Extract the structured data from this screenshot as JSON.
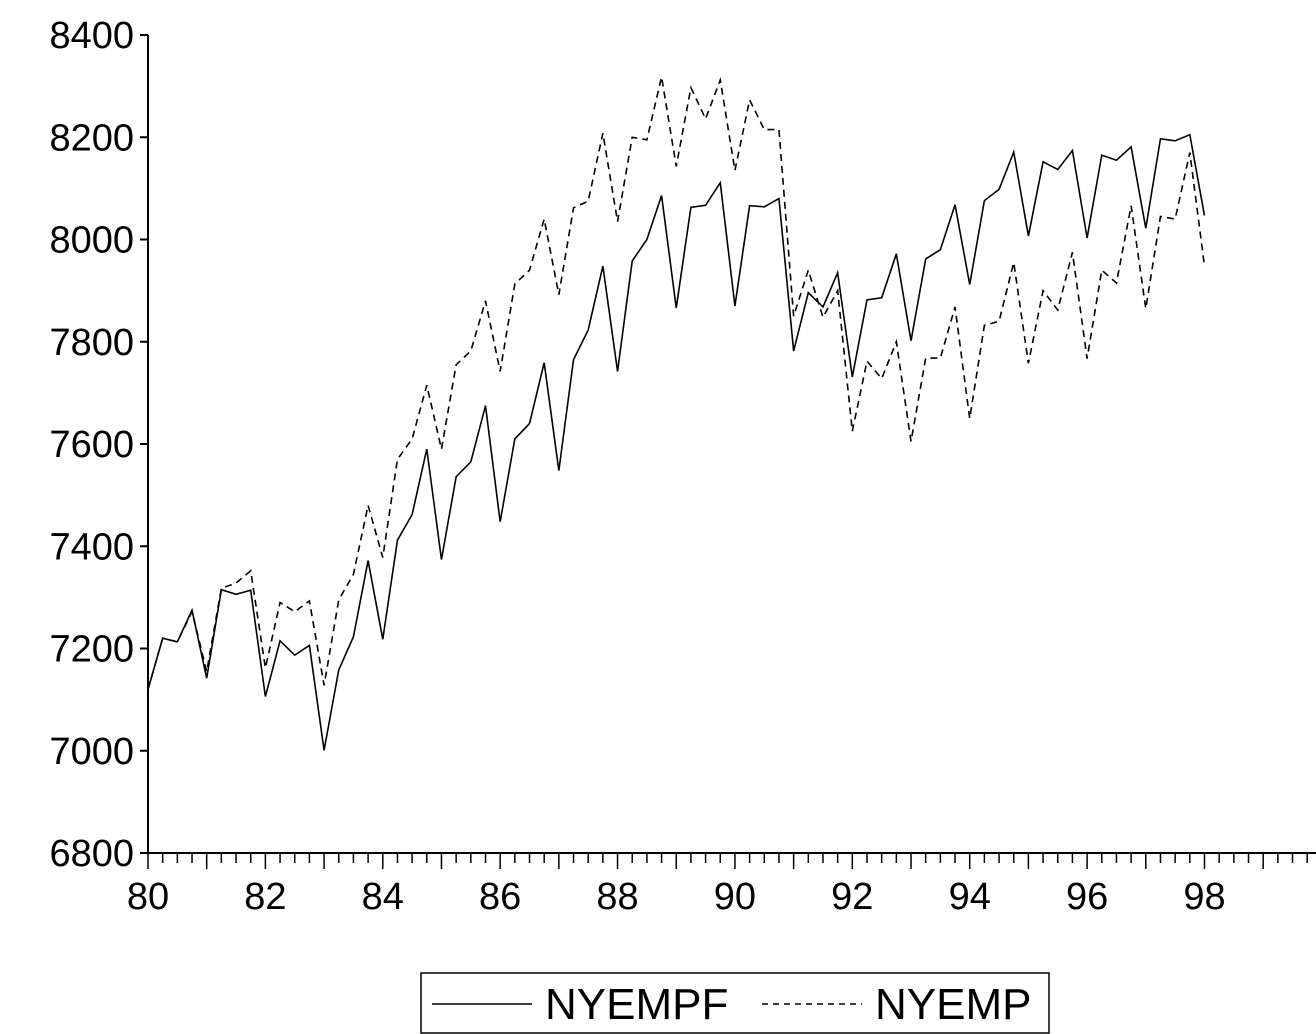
{
  "chart_data": {
    "type": "line",
    "title": "",
    "xlabel": "",
    "ylabel": "",
    "x_start": 1980.0,
    "x_step": 0.25,
    "xlim": [
      1980,
      1999.9
    ],
    "ylim": [
      6800,
      8400
    ],
    "y_ticks": [
      6800,
      7000,
      7200,
      7400,
      7600,
      7800,
      8000,
      8200,
      8400
    ],
    "x_ticks": [
      {
        "value": 1980,
        "label": "80"
      },
      {
        "value": 1982,
        "label": "82"
      },
      {
        "value": 1984,
        "label": "84"
      },
      {
        "value": 1986,
        "label": "86"
      },
      {
        "value": 1988,
        "label": "88"
      },
      {
        "value": 1990,
        "label": "90"
      },
      {
        "value": 1992,
        "label": "92"
      },
      {
        "value": 1994,
        "label": "94"
      },
      {
        "value": 1996,
        "label": "96"
      },
      {
        "value": 1998,
        "label": "98"
      }
    ],
    "grid": false,
    "legend": "bottom-center",
    "series": [
      {
        "name": "NYEMPF",
        "style": "solid",
        "color": "#000000",
        "values": [
          7120,
          7220,
          7213,
          7275,
          7142,
          7315,
          7306,
          7314,
          7106,
          7215,
          7187,
          7206,
          7001,
          7158,
          7223,
          7372,
          7218,
          7412,
          7462,
          7590,
          7374,
          7536,
          7565,
          7675,
          7448,
          7610,
          7640,
          7759,
          7548,
          7765,
          7823,
          7948,
          7742,
          7958,
          8000,
          8086,
          7866,
          8063,
          8067,
          8111,
          7870,
          8066,
          8064,
          8080,
          7782,
          7896,
          7868,
          7935,
          7731,
          7882,
          7886,
          7972,
          7802,
          7962,
          7980,
          8068,
          7912,
          8076,
          8098,
          8171,
          8007,
          8152,
          8137,
          8174,
          8003,
          8165,
          8155,
          8181,
          8022,
          8197,
          8193,
          8205,
          8047
        ]
      },
      {
        "name": "NYEMP",
        "style": "dashed",
        "color": "#000000",
        "values": [
          7120,
          7220,
          7213,
          7272,
          7155,
          7318,
          7328,
          7352,
          7162,
          7290,
          7272,
          7293,
          7128,
          7295,
          7345,
          7480,
          7378,
          7570,
          7610,
          7715,
          7590,
          7755,
          7782,
          7880,
          7742,
          7913,
          7940,
          8040,
          7892,
          8062,
          8075,
          8208,
          8035,
          8200,
          8195,
          8318,
          8143,
          8297,
          8236,
          8312,
          8135,
          8273,
          8215,
          8215,
          7850,
          7940,
          7848,
          7900,
          7625,
          7762,
          7728,
          7800,
          7605,
          7768,
          7768,
          7868,
          7650,
          7832,
          7840,
          7955,
          7758,
          7900,
          7862,
          7975,
          7767,
          7940,
          7915,
          8066,
          7865,
          8045,
          8040,
          8170,
          7948
        ]
      }
    ]
  }
}
